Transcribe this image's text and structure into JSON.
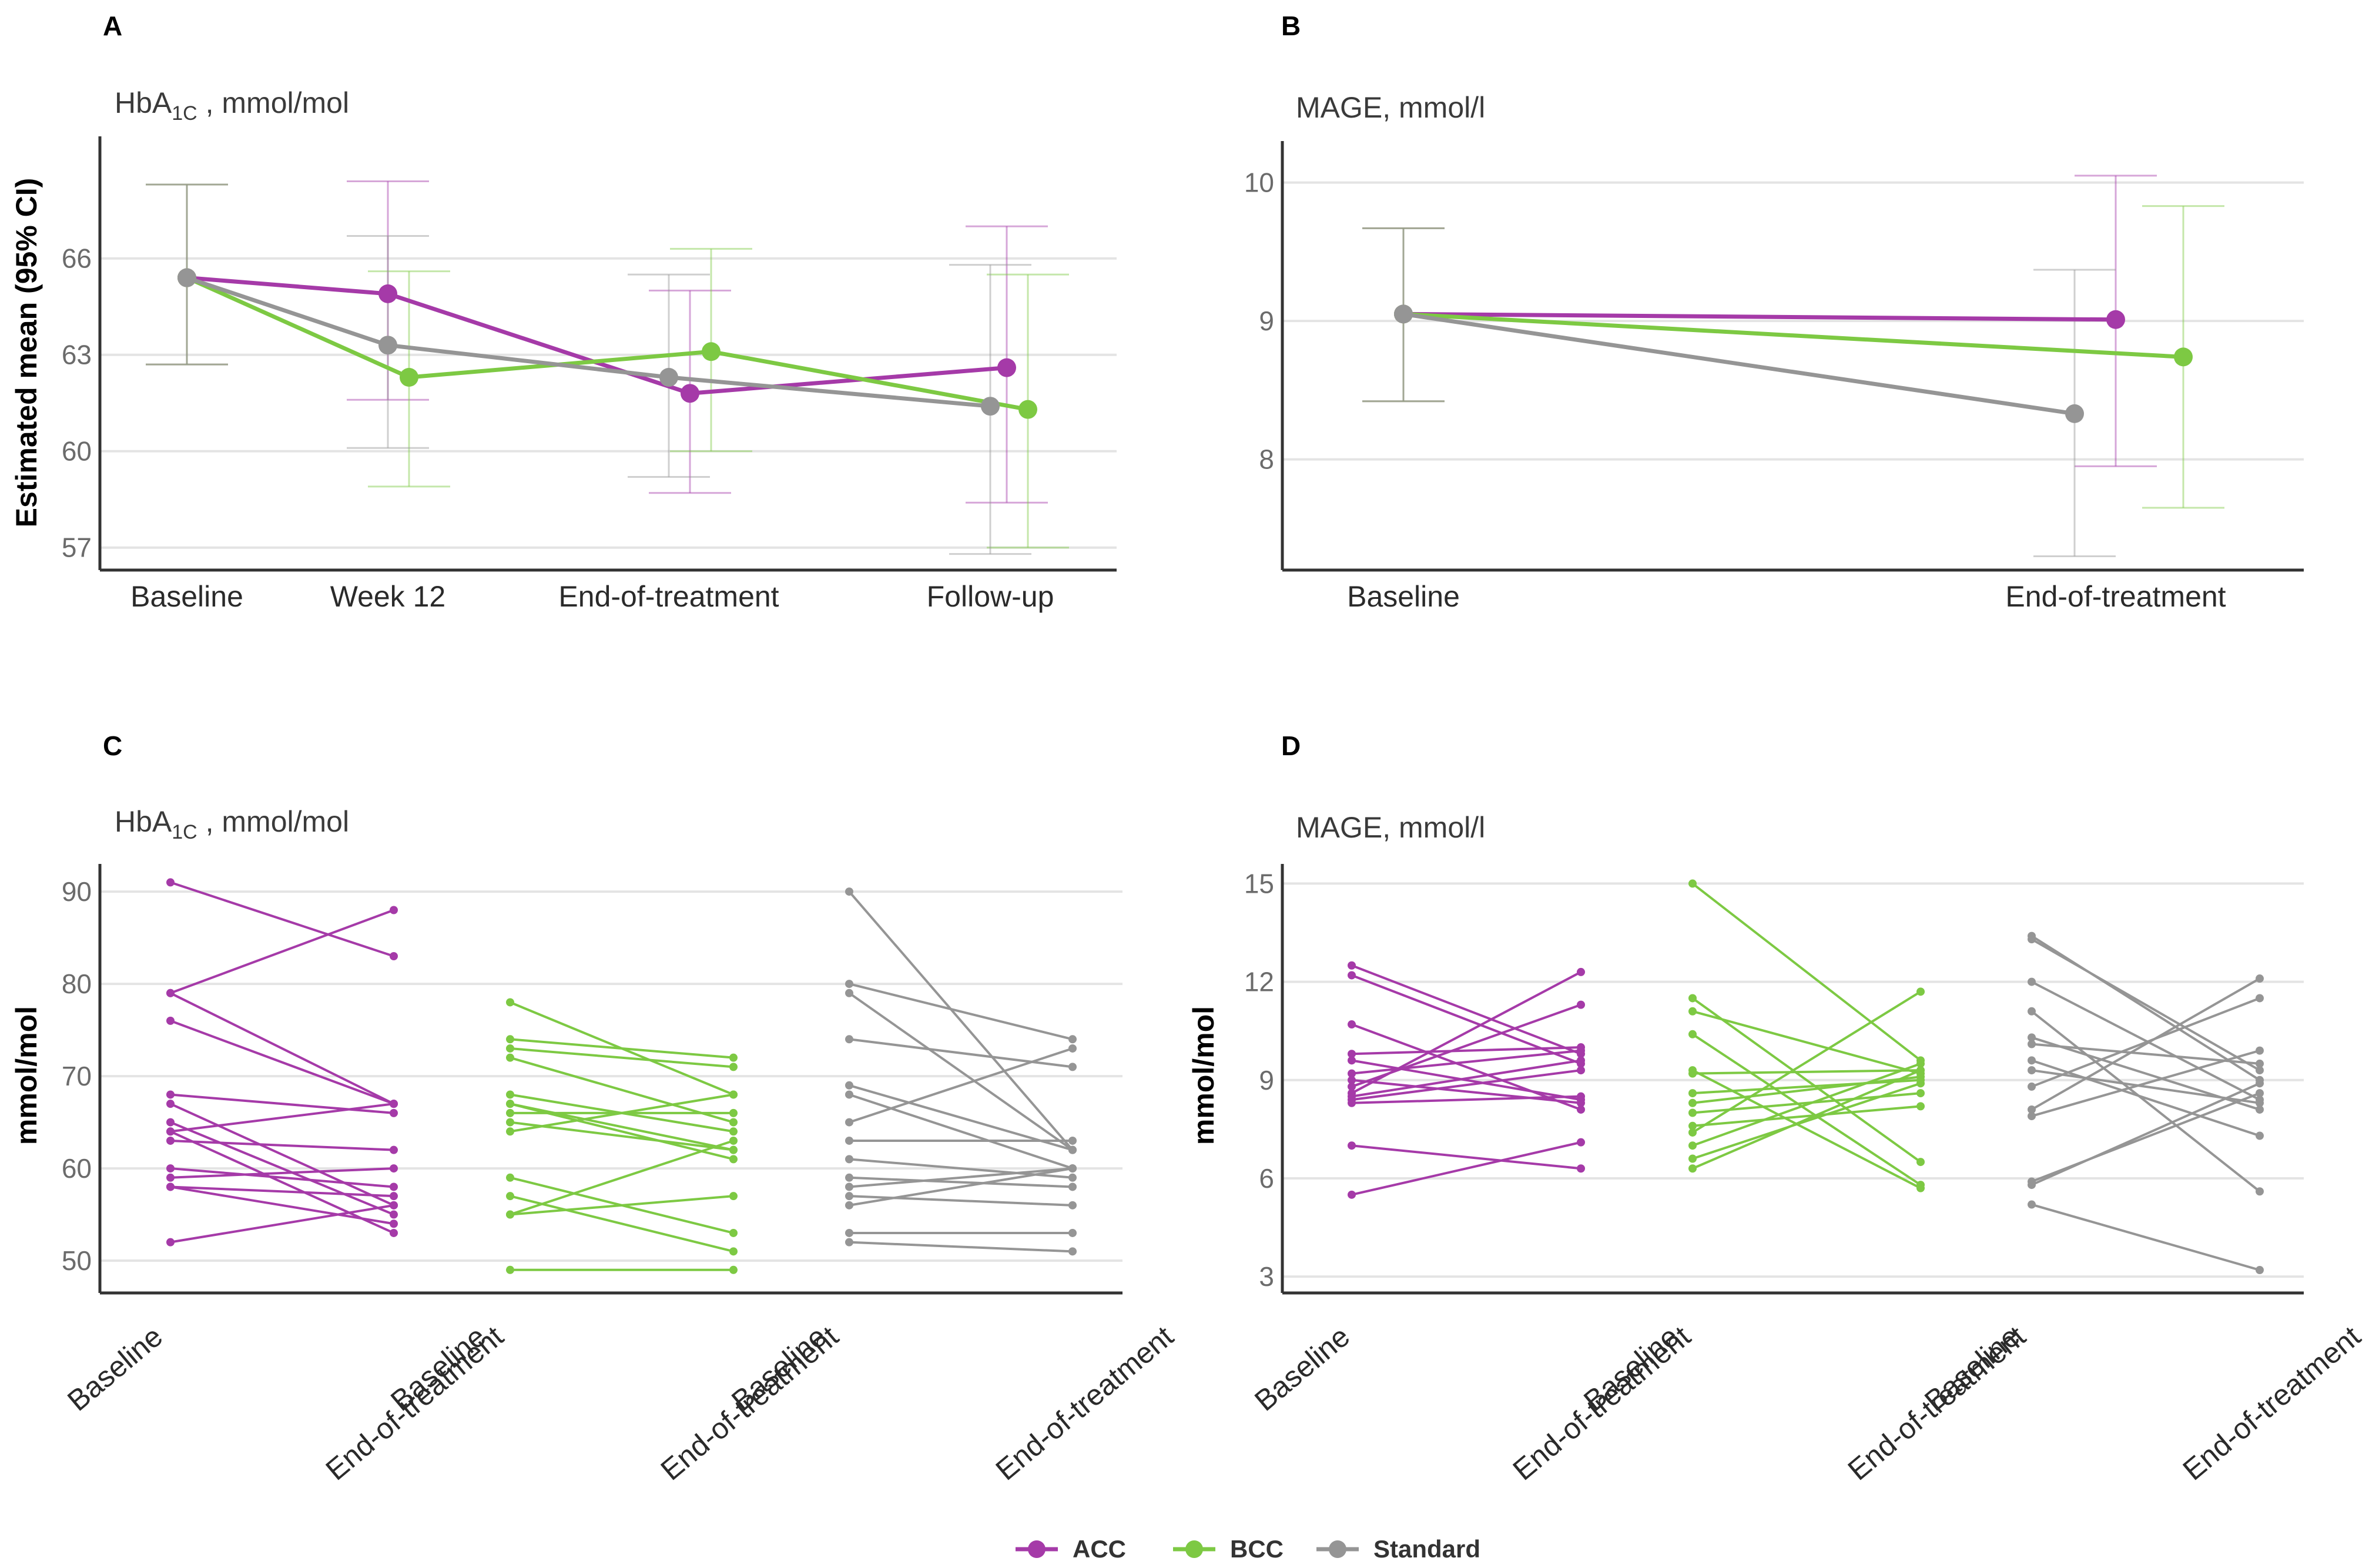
{
  "colors": {
    "ACC": "#a53aa8",
    "BCC": "#7dc943",
    "Standard": "#959595"
  },
  "legend": [
    {
      "key": "ACC",
      "label": "ACC"
    },
    {
      "key": "BCC",
      "label": "BCC"
    },
    {
      "key": "Standard",
      "label": "Standard"
    }
  ],
  "chart_data": [
    {
      "id": "A",
      "panel_label": "A",
      "type": "line",
      "title_main": "HbA",
      "title_sub": "1C",
      "title_unit": " , mmol/mol",
      "ylabel": "Estimated mean (95% CI)",
      "categories": [
        "Baseline",
        "Week 12",
        "End-of-treatment",
        "Follow-up"
      ],
      "ylim": [
        56.3,
        69.8
      ],
      "yticks": [
        57,
        60,
        63,
        66
      ],
      "series": [
        {
          "name": "ACC",
          "values": [
            65.4,
            64.9,
            61.8,
            62.6
          ],
          "ci_low": [
            62.7,
            61.6,
            58.7,
            58.4
          ],
          "ci_high": [
            68.3,
            68.4,
            65.0,
            67.0
          ]
        },
        {
          "name": "BCC",
          "values": [
            65.4,
            62.3,
            63.1,
            61.3
          ],
          "ci_low": [
            62.7,
            58.9,
            60.0,
            57.0
          ],
          "ci_high": [
            68.3,
            65.6,
            66.3,
            65.5
          ]
        },
        {
          "name": "Standard",
          "values": [
            65.4,
            63.3,
            62.3,
            61.4
          ],
          "ci_low": [
            62.7,
            60.1,
            59.2,
            56.8
          ],
          "ci_high": [
            68.3,
            66.7,
            65.5,
            65.8
          ]
        }
      ]
    },
    {
      "id": "B",
      "panel_label": "B",
      "type": "line",
      "title_main": "MAGE, mmol/l",
      "title_sub": "",
      "title_unit": "",
      "ylabel": "",
      "categories": [
        "Baseline",
        "End-of-treatment"
      ],
      "ylim": [
        7.2,
        10.3
      ],
      "yticks": [
        8,
        9,
        10
      ],
      "series": [
        {
          "name": "ACC",
          "values": [
            9.05,
            9.01
          ],
          "ci_low": [
            8.42,
            7.95
          ],
          "ci_high": [
            9.67,
            10.05
          ]
        },
        {
          "name": "BCC",
          "values": [
            9.05,
            8.74
          ],
          "ci_low": [
            8.42,
            7.65
          ],
          "ci_high": [
            9.67,
            9.83
          ]
        },
        {
          "name": "Standard",
          "values": [
            9.05,
            8.33
          ],
          "ci_low": [
            8.42,
            7.3
          ],
          "ci_high": [
            9.67,
            9.37
          ]
        }
      ]
    },
    {
      "id": "C",
      "panel_label": "C",
      "type": "line",
      "title_main": "HbA",
      "title_sub": "1C",
      "title_unit": " , mmol/mol",
      "ylabel": "mmol/mol",
      "xticks": [
        "Baseline",
        "End-of-treatment",
        "Baseline",
        "End-of-treatment",
        "Baseline",
        "End-of-treatment"
      ],
      "ylim": [
        46.5,
        93
      ],
      "yticks": [
        50,
        60,
        70,
        80,
        90
      ],
      "groups": [
        {
          "name": "ACC",
          "pairs": [
            [
              91,
              83
            ],
            [
              79,
              67
            ],
            [
              79,
              88
            ],
            [
              76,
              67
            ],
            [
              68,
              66
            ],
            [
              67,
              56
            ],
            [
              65,
              55
            ],
            [
              64,
              53
            ],
            [
              63,
              62
            ],
            [
              60,
              58
            ],
            [
              59,
              60
            ],
            [
              58,
              57
            ],
            [
              58,
              54
            ],
            [
              52,
              56
            ],
            [
              64,
              67
            ]
          ]
        },
        {
          "name": "BCC",
          "pairs": [
            [
              78,
              68
            ],
            [
              74,
              72
            ],
            [
              73,
              71
            ],
            [
              72,
              65
            ],
            [
              68,
              64
            ],
            [
              67,
              62
            ],
            [
              67,
              61
            ],
            [
              66,
              66
            ],
            [
              65,
              62
            ],
            [
              64,
              68
            ],
            [
              59,
              53
            ],
            [
              57,
              51
            ],
            [
              55,
              63
            ],
            [
              55,
              57
            ],
            [
              49,
              49
            ]
          ]
        },
        {
          "name": "Standard",
          "pairs": [
            [
              90,
              62
            ],
            [
              80,
              74
            ],
            [
              79,
              62
            ],
            [
              74,
              71
            ],
            [
              69,
              62
            ],
            [
              68,
              60
            ],
            [
              65,
              73
            ],
            [
              63,
              63
            ],
            [
              61,
              59
            ],
            [
              59,
              58
            ],
            [
              58,
              60
            ],
            [
              57,
              56
            ],
            [
              56,
              60
            ],
            [
              53,
              53
            ],
            [
              52,
              51
            ]
          ]
        }
      ]
    },
    {
      "id": "D",
      "panel_label": "D",
      "type": "line",
      "title_main": "MAGE, mmol/l",
      "title_sub": "",
      "title_unit": "",
      "ylabel": "mmol/mol",
      "xticks": [
        "Baseline",
        "End-of-treatment",
        "Baseline",
        "End-of-treatment",
        "Baseline",
        "End-of-treatment"
      ],
      "ylim": [
        2.5,
        15.6
      ],
      "yticks": [
        3,
        6,
        9,
        12,
        15
      ],
      "groups": [
        {
          "name": "ACC",
          "pairs": [
            [
              12.5,
              9.8
            ],
            [
              12.2,
              9.5
            ],
            [
              10.7,
              8.1
            ],
            [
              9.8,
              10.0
            ],
            [
              9.6,
              8.4
            ],
            [
              9.2,
              9.9
            ],
            [
              9.0,
              8.3
            ],
            [
              8.8,
              11.3
            ],
            [
              8.6,
              12.3
            ],
            [
              8.4,
              9.3
            ],
            [
              8.3,
              8.5
            ],
            [
              7.0,
              6.3
            ],
            [
              5.5,
              7.1
            ],
            [
              8.5,
              9.6
            ]
          ]
        },
        {
          "name": "BCC",
          "pairs": [
            [
              15.0,
              9.6
            ],
            [
              11.5,
              6.5
            ],
            [
              11.1,
              9.2
            ],
            [
              10.4,
              5.8
            ],
            [
              9.3,
              5.7
            ],
            [
              9.2,
              9.3
            ],
            [
              8.6,
              9.0
            ],
            [
              8.0,
              8.6
            ],
            [
              7.6,
              8.2
            ],
            [
              7.4,
              11.7
            ],
            [
              7.0,
              9.5
            ],
            [
              6.6,
              8.9
            ],
            [
              6.3,
              9.3
            ],
            [
              8.3,
              9.1
            ]
          ]
        },
        {
          "name": "Standard",
          "pairs": [
            [
              13.3,
              9.3
            ],
            [
              13.4,
              9.0
            ],
            [
              12.0,
              8.4
            ],
            [
              11.1,
              5.6
            ],
            [
              10.3,
              8.1
            ],
            [
              10.1,
              9.5
            ],
            [
              9.6,
              7.3
            ],
            [
              9.3,
              8.3
            ],
            [
              8.8,
              11.5
            ],
            [
              8.1,
              12.1
            ],
            [
              7.9,
              9.9
            ],
            [
              5.9,
              8.6
            ],
            [
              5.8,
              8.9
            ],
            [
              5.2,
              3.2
            ]
          ]
        }
      ]
    }
  ]
}
